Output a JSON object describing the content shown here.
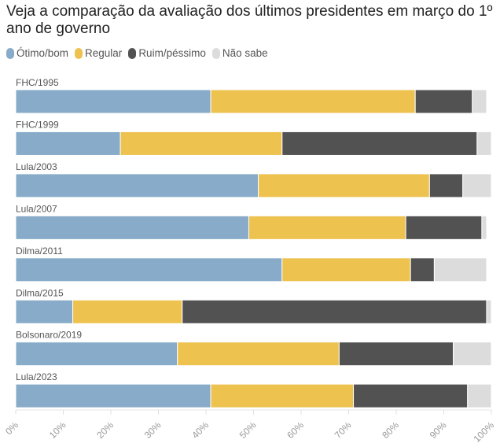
{
  "chart_data": {
    "type": "bar",
    "orientation": "horizontal",
    "stacked": true,
    "title": "Veja a comparação da avaliação dos últimos presidentes em março do 1º ano de governo",
    "xlabel": "",
    "ylabel": "",
    "xlim": [
      0,
      100
    ],
    "x_ticks": [
      "0%",
      "10%",
      "20%",
      "30%",
      "40%",
      "50%",
      "60%",
      "70%",
      "80%",
      "90%",
      "100%"
    ],
    "legend_position": "top-left",
    "categories": [
      "FHC/1995",
      "FHC/1999",
      "Lula/2003",
      "Lula/2007",
      "Dilma/2011",
      "Dilma/2015",
      "Bolsonaro/2019",
      "Lula/2023"
    ],
    "series": [
      {
        "name": "Ótimo/bom",
        "color": "#87abc8",
        "values": [
          41,
          22,
          51,
          49,
          56,
          12,
          34,
          41
        ]
      },
      {
        "name": "Regular",
        "color": "#eec24f",
        "values": [
          43,
          34,
          36,
          33,
          27,
          23,
          34,
          30
        ]
      },
      {
        "name": "Ruim/péssimo",
        "color": "#525252",
        "values": [
          12,
          41,
          7,
          16,
          5,
          64,
          24,
          24
        ]
      },
      {
        "name": "Não sabe",
        "color": "#dcdcdc",
        "values": [
          3,
          3,
          6,
          1,
          11,
          1,
          8,
          5
        ]
      }
    ]
  }
}
